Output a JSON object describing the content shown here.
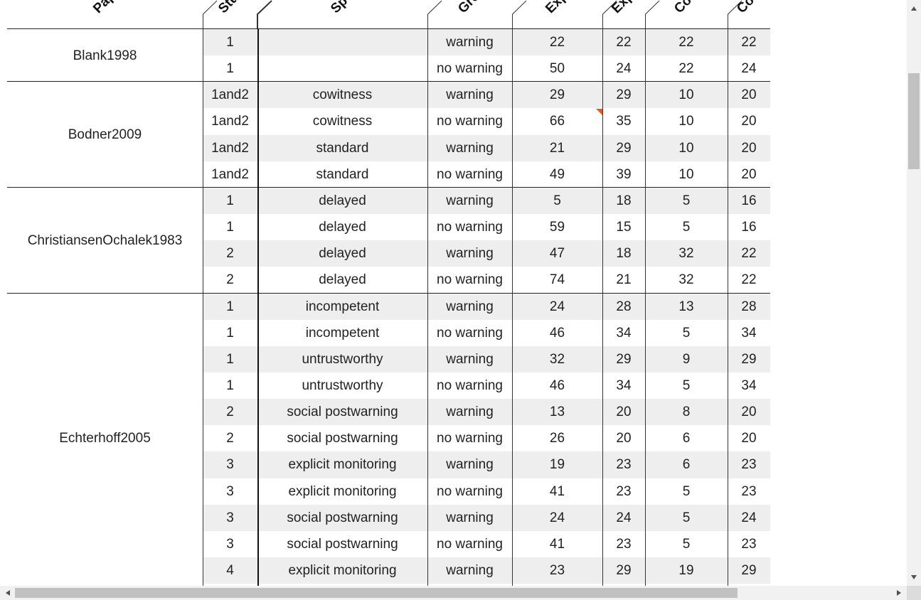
{
  "header": {
    "columns": [
      "Pap",
      "Stu",
      "Spe",
      "Gro",
      "Exp",
      "Exp",
      "Co",
      "Co"
    ]
  },
  "table": {
    "groups": [
      {
        "paper": "Blank1998",
        "rows": [
          [
            1,
            null,
            "warning",
            22,
            22,
            22,
            22
          ],
          [
            1,
            null,
            "no warning",
            50,
            24,
            22,
            24
          ]
        ]
      },
      {
        "paper": "Bodner2009",
        "rows": [
          [
            "1and2",
            "cowitness",
            "warning",
            29,
            29,
            10,
            20
          ],
          [
            "1and2",
            "cowitness",
            "no warning",
            66,
            35,
            10,
            20
          ],
          [
            "1and2",
            "standard",
            "warning",
            21,
            29,
            10,
            20
          ],
          [
            "1and2",
            "standard",
            "no warning",
            49,
            39,
            10,
            20
          ]
        ]
      },
      {
        "paper": "ChristiansenOchalek1983",
        "rows": [
          [
            1,
            "delayed",
            "warning",
            5,
            18,
            5,
            16
          ],
          [
            1,
            "delayed",
            "no warning",
            59,
            15,
            5,
            16
          ],
          [
            2,
            "delayed",
            "warning",
            47,
            18,
            32,
            22
          ],
          [
            2,
            "delayed",
            "no warning",
            74,
            21,
            32,
            22
          ]
        ]
      },
      {
        "paper": "Echterhoff2005",
        "rows": [
          [
            1,
            "incompetent",
            "warning",
            24,
            28,
            13,
            28
          ],
          [
            1,
            "incompetent",
            "no warning",
            46,
            34,
            5,
            34
          ],
          [
            1,
            "untrustworthy",
            "warning",
            32,
            29,
            9,
            29
          ],
          [
            1,
            "untrustworthy",
            "no warning",
            46,
            34,
            5,
            34
          ],
          [
            2,
            "social postwarning",
            "warning",
            13,
            20,
            8,
            20
          ],
          [
            2,
            "social postwarning",
            "no warning",
            26,
            20,
            6,
            20
          ],
          [
            3,
            "explicit monitoring",
            "warning",
            19,
            23,
            6,
            23
          ],
          [
            3,
            "explicit monitoring",
            "no warning",
            41,
            23,
            5,
            23
          ],
          [
            3,
            "social postwarning",
            "warning",
            24,
            24,
            5,
            24
          ],
          [
            3,
            "social postwarning",
            "no warning",
            41,
            23,
            5,
            23
          ],
          [
            4,
            "explicit monitoring",
            "warning",
            23,
            29,
            19,
            29
          ]
        ]
      }
    ]
  }
}
